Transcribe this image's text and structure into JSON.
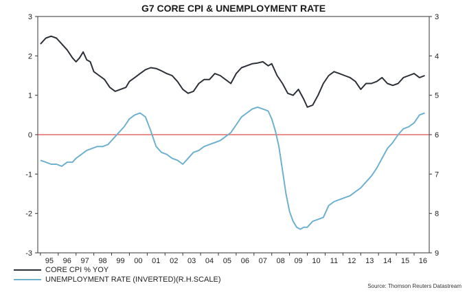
{
  "chart_data": {
    "type": "line",
    "title": "G7 CORE CPI & UNEMPLOYMENT RATE",
    "x_tick_labels": [
      "95",
      "96",
      "97",
      "98",
      "99",
      "00",
      "01",
      "02",
      "03",
      "04",
      "05",
      "06",
      "07",
      "08",
      "09",
      "10",
      "11",
      "12",
      "13",
      "14",
      "15",
      "16"
    ],
    "x_range": [
      1994.85,
      2016.85
    ],
    "y_left": {
      "range": [
        -3,
        3
      ],
      "ticks": [
        3,
        2,
        1,
        0,
        -1,
        -2,
        -3
      ]
    },
    "y_right": {
      "range": [
        3,
        9
      ],
      "inverted": true,
      "ticks": [
        3,
        4,
        5,
        6,
        7,
        8,
        9
      ]
    },
    "reference_line": {
      "axis": "left",
      "value": 0,
      "color": "#e04a4a"
    },
    "series": [
      {
        "name": "CORE CPI % YOY",
        "axis": "left",
        "color": "#2b2f36",
        "x": [
          1995.0,
          1995.3,
          1995.6,
          1995.9,
          1996.2,
          1996.5,
          1996.8,
          1997.0,
          1997.2,
          1997.4,
          1997.6,
          1997.8,
          1998.0,
          1998.3,
          1998.6,
          1998.9,
          1999.2,
          1999.5,
          1999.8,
          2000.0,
          2000.3,
          2000.6,
          2000.9,
          2001.2,
          2001.5,
          2001.8,
          2002.1,
          2002.4,
          2002.7,
          2003.0,
          2003.3,
          2003.6,
          2003.9,
          2004.2,
          2004.5,
          2004.8,
          2005.1,
          2005.4,
          2005.7,
          2006.0,
          2006.3,
          2006.6,
          2006.9,
          2007.2,
          2007.5,
          2007.8,
          2008.0,
          2008.3,
          2008.6,
          2008.9,
          2009.2,
          2009.5,
          2009.8,
          2010.0,
          2010.3,
          2010.6,
          2010.9,
          2011.2,
          2011.5,
          2011.8,
          2012.1,
          2012.4,
          2012.7,
          2013.0,
          2013.3,
          2013.6,
          2013.9,
          2014.2,
          2014.5,
          2014.8,
          2015.1,
          2015.4,
          2015.7,
          2016.0,
          2016.3,
          2016.6
        ],
        "y": [
          2.3,
          2.45,
          2.5,
          2.45,
          2.3,
          2.15,
          1.95,
          1.85,
          1.95,
          2.1,
          1.9,
          1.85,
          1.6,
          1.5,
          1.4,
          1.2,
          1.1,
          1.15,
          1.2,
          1.35,
          1.45,
          1.55,
          1.65,
          1.7,
          1.68,
          1.62,
          1.55,
          1.5,
          1.35,
          1.15,
          1.05,
          1.1,
          1.3,
          1.4,
          1.4,
          1.55,
          1.5,
          1.4,
          1.3,
          1.55,
          1.7,
          1.75,
          1.8,
          1.82,
          1.85,
          1.75,
          1.8,
          1.5,
          1.3,
          1.05,
          1.0,
          1.15,
          0.9,
          0.7,
          0.75,
          1.0,
          1.3,
          1.5,
          1.6,
          1.55,
          1.5,
          1.45,
          1.35,
          1.15,
          1.3,
          1.3,
          1.35,
          1.45,
          1.3,
          1.25,
          1.3,
          1.45,
          1.5,
          1.55,
          1.45,
          1.5
        ]
      },
      {
        "name": "UNEMPLOYMENT RATE (INVERTED)(R.H.SCALE)",
        "axis": "right",
        "color": "#6fb0cf",
        "x": [
          1995.0,
          1995.3,
          1995.6,
          1995.9,
          1996.2,
          1996.5,
          1996.8,
          1997.0,
          1997.3,
          1997.6,
          1997.9,
          1998.2,
          1998.5,
          1998.8,
          1999.1,
          1999.4,
          1999.7,
          2000.0,
          2000.3,
          2000.6,
          2000.9,
          2001.2,
          2001.5,
          2001.8,
          2002.1,
          2002.4,
          2002.7,
          2003.0,
          2003.3,
          2003.6,
          2003.9,
          2004.2,
          2004.5,
          2004.8,
          2005.1,
          2005.4,
          2005.7,
          2006.0,
          2006.3,
          2006.6,
          2006.9,
          2007.2,
          2007.5,
          2007.8,
          2008.0,
          2008.2,
          2008.4,
          2008.6,
          2008.8,
          2009.0,
          2009.2,
          2009.4,
          2009.6,
          2009.8,
          2010.0,
          2010.3,
          2010.6,
          2010.9,
          2011.2,
          2011.5,
          2011.8,
          2012.1,
          2012.4,
          2012.7,
          2013.0,
          2013.3,
          2013.6,
          2013.9,
          2014.2,
          2014.5,
          2014.8,
          2015.1,
          2015.4,
          2015.7,
          2016.0,
          2016.3,
          2016.6
        ],
        "y": [
          6.65,
          6.7,
          6.75,
          6.75,
          6.8,
          6.7,
          6.7,
          6.6,
          6.5,
          6.4,
          6.35,
          6.3,
          6.3,
          6.25,
          6.1,
          5.95,
          5.8,
          5.6,
          5.5,
          5.45,
          5.55,
          5.9,
          6.3,
          6.45,
          6.5,
          6.6,
          6.65,
          6.75,
          6.6,
          6.45,
          6.4,
          6.3,
          6.25,
          6.2,
          6.15,
          6.05,
          5.95,
          5.75,
          5.55,
          5.45,
          5.35,
          5.3,
          5.35,
          5.4,
          5.6,
          5.9,
          6.3,
          6.9,
          7.5,
          7.95,
          8.2,
          8.35,
          8.4,
          8.35,
          8.35,
          8.2,
          8.15,
          8.1,
          7.8,
          7.7,
          7.65,
          7.6,
          7.55,
          7.45,
          7.35,
          7.2,
          7.05,
          6.85,
          6.6,
          6.35,
          6.2,
          6.0,
          5.85,
          5.8,
          5.7,
          5.5,
          5.45
        ]
      }
    ]
  },
  "legend": {
    "cpi_label": "CORE CPI % YOY",
    "unemployment_label": "UNEMPLOYMENT RATE (INVERTED)(R.H.SCALE)",
    "cpi_color": "#2b2f36",
    "unemployment_color": "#6fb0cf"
  },
  "source": "Source: Thomson Reuters Datastream"
}
